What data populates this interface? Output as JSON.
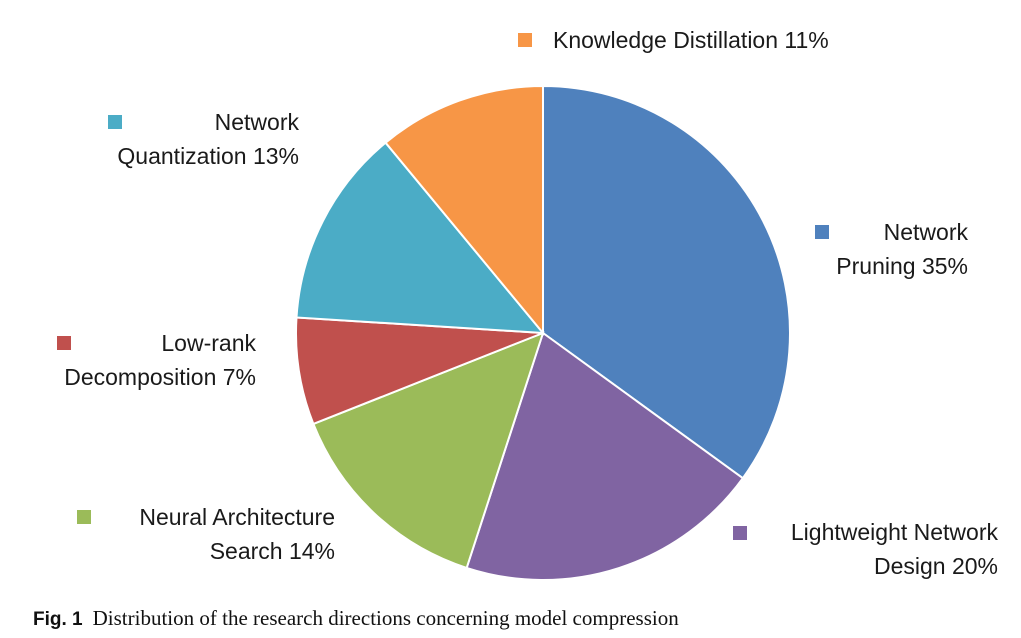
{
  "chart_data": {
    "type": "pie",
    "slices": [
      {
        "name": "Network Pruning",
        "value": 35,
        "color": "#4f81bd"
      },
      {
        "name": "Lightweight Network Design",
        "value": 20,
        "color": "#8064a2"
      },
      {
        "name": "Neural Architecture Search",
        "value": 14,
        "color": "#9bbb59"
      },
      {
        "name": "Low-rank Decomposition",
        "value": 7,
        "color": "#c0504d"
      },
      {
        "name": "Network Quantization",
        "value": 13,
        "color": "#4bacc6"
      },
      {
        "name": "Knowledge Distillation",
        "value": 11,
        "color": "#f79646"
      }
    ],
    "labels": [
      {
        "lines": [
          "Network",
          "Pruning 35%"
        ]
      },
      {
        "lines": [
          "Lightweight Network",
          "Design 20%"
        ]
      },
      {
        "lines": [
          "Neural Architecture",
          "Search 14%"
        ]
      },
      {
        "lines": [
          "Low-rank",
          "Decomposition 7%"
        ]
      },
      {
        "lines": [
          "Network",
          "Quantization 13%"
        ]
      },
      {
        "lines": [
          "Knowledge Distillation 11%"
        ]
      }
    ],
    "start": "12 o'clock",
    "direction": "clockwise",
    "slice_border": "#ffffff"
  },
  "caption": {
    "fig_label": "Fig. 1",
    "text": "Distribution of the research directions concerning model compression"
  }
}
